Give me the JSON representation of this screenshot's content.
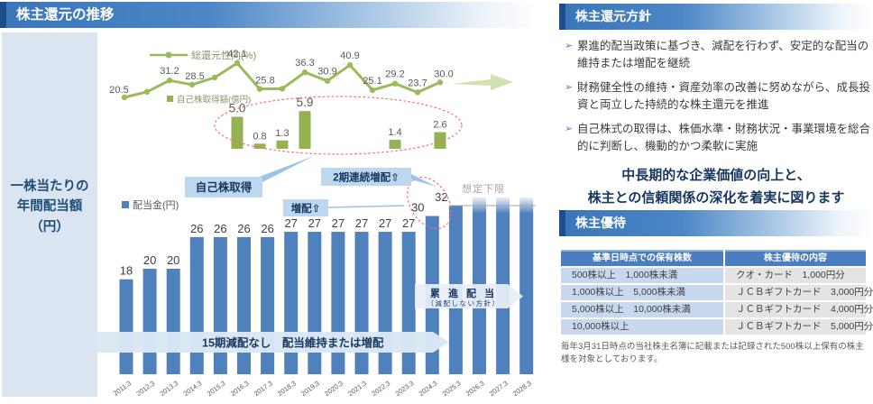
{
  "page": {
    "left_title": "株主還元の推移",
    "policy_title": "株主還元方針",
    "benefit_title": "株主優待"
  },
  "left_axis_label_lines": [
    "一株当たりの",
    "年間配当額",
    "（円）"
  ],
  "chart_data": [
    {
      "type": "line",
      "name": "総還元性向(%)",
      "x": [
        "2011.3",
        "2012.3",
        "2013.3",
        "2014.3",
        "2015.3",
        "2016.3",
        "2017.3",
        "2018.3",
        "2019.3",
        "2020.3",
        "2021.3",
        "2022.3",
        "2023.3",
        "2024.3",
        "2025.3"
      ],
      "values": [
        20.5,
        24.0,
        31.2,
        28.5,
        33.0,
        42.1,
        25.8,
        26.0,
        36.3,
        30.9,
        40.9,
        25.1,
        29.2,
        23.7,
        30.0
      ],
      "point_labels": [
        "20.5",
        "",
        "31.2",
        "28.5",
        "",
        "42.1",
        "25.8",
        "",
        "36.3",
        "30.9",
        "40.9",
        "25.1",
        "29.2",
        "23.7",
        "30.0"
      ],
      "color": "#9bbb59"
    },
    {
      "type": "bar",
      "name": "自己株取得額(億円)",
      "x": [
        "2016.3",
        "2017.3",
        "2018.3",
        "2019.3",
        "2023.3",
        "2025.3"
      ],
      "values": [
        5.0,
        0.8,
        1.3,
        5.9,
        1.4,
        2.6
      ],
      "value_labels": [
        "5.0",
        "0.8",
        "1.3",
        "5.9",
        "1.4",
        "2.6"
      ],
      "color": "#94b252"
    },
    {
      "type": "bar",
      "name": "配当金(円)",
      "categories": [
        "2011.3",
        "2012.3",
        "2013.3",
        "2014.3",
        "2015.3",
        "2016.3",
        "2017.3",
        "2018.3",
        "2019.3",
        "2020.3",
        "2021.3",
        "2022.3",
        "2023.3",
        "2024.3",
        "2025.3",
        "2026.3",
        "2027.3",
        "2028.3"
      ],
      "values": [
        18,
        20,
        20,
        26,
        26,
        26,
        26,
        27,
        27,
        27,
        27,
        27,
        27,
        30,
        32,
        32,
        32,
        32
      ],
      "value_labels": [
        "18",
        "20",
        "20",
        "26",
        "26",
        "26",
        "26",
        "27",
        "27",
        "27",
        "27",
        "27",
        "27",
        "30",
        "32",
        "",
        "",
        ""
      ],
      "forecast_from_index": 15,
      "color": "#4f81bd",
      "ylim": [
        0,
        45
      ]
    }
  ],
  "annotations": {
    "buyback_callout": "自己株取得",
    "consecutive_callout": "2期連続増配⇧",
    "increase_callout": "増配⇧",
    "assumed_floor": "想定下限",
    "no_cut_band": "15期減配なし　配当維持または増配",
    "progressive_line1": "累 進 配 当",
    "progressive_line2": "（減配しない方針）"
  },
  "colors": {
    "bar_blue": "#4f81bd",
    "line_green": "#9bbb59",
    "buyback_green": "#94b252",
    "legend_text": "#85936b",
    "value_text": "#595959",
    "red_dashed": "#ff6a6a",
    "callout_bg": "#bdd7ee",
    "callout_text": "#17375e",
    "connector": "#9dc3e6",
    "band_bg": "#dce7f5",
    "floor_gray": "#a6a6a6",
    "arrow_green": "#cbdba4"
  },
  "policy": {
    "bullet_marker": "➢",
    "bullets": [
      "累進的配当政策に基づき、減配を行わず、安定的な配当の維持または増配を継続",
      "財務健全性の維持・資産効率の改善に努めながら、成長投資と両立した持続的な株主還元を推進",
      "自己株式の取得は、株価水準・財務状況・事業環境を総合的に判断し、機動的かつ柔軟に実施"
    ],
    "statement_lines": [
      "中長期的な企業価値の向上と、",
      "株主との信頼関係の深化を着実に図ります"
    ]
  },
  "benefit": {
    "table": {
      "headers": [
        "基準日時点での保有株数",
        "株主優待の内容"
      ],
      "rows": [
        [
          "500株以上　1,000株未満",
          "クオ・カード　1,000円分"
        ],
        [
          "1,000株以上　5,000株未満",
          "ＪＣＢギフトカード　3,000円分"
        ],
        [
          "5,000株以上　10,000株未満",
          "ＪＣＢギフトカード　4,000円分"
        ],
        [
          "10,000株以上",
          "ＪＣＢギフトカード　5,000円分"
        ]
      ]
    },
    "footnote": "毎年3月31日時点の当社株主名簿に記載または記録された500株以上保有の株主様を対象としております。"
  }
}
